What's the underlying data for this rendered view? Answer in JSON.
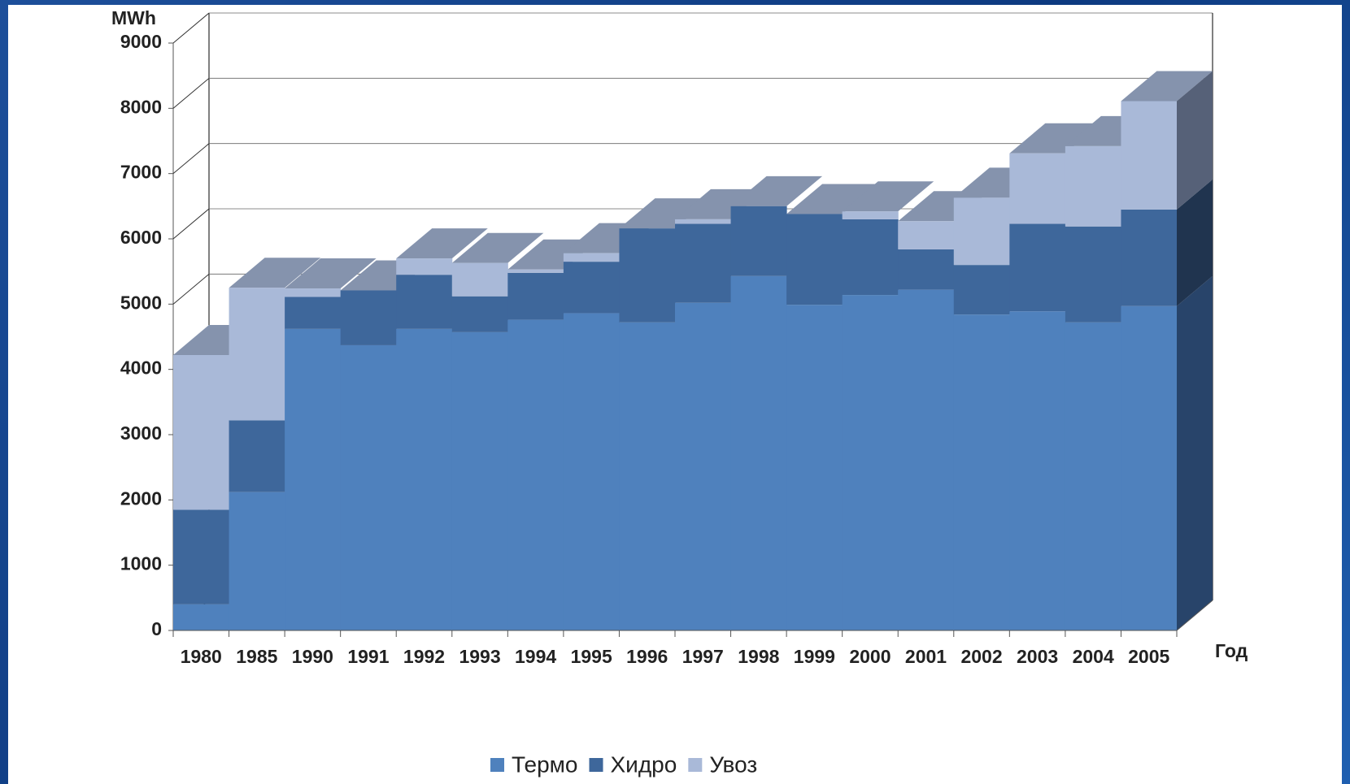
{
  "chart_data": {
    "type": "stacked_area_3d",
    "y_axis_label": "MWh",
    "x_axis_label": "Год",
    "categories": [
      "1980",
      "1985",
      "1990",
      "1991",
      "1992",
      "1993",
      "1994",
      "1995",
      "1996",
      "1997",
      "1998",
      "1999",
      "2000",
      "2001",
      "2002",
      "2003",
      "2004",
      "2005"
    ],
    "series": [
      {
        "name": "Термо",
        "color": "#4f81bd",
        "values": [
          400,
          2120,
          4620,
          4370,
          4620,
          4570,
          4760,
          4860,
          4720,
          5020,
          5430,
          4990,
          5140,
          5220,
          4840,
          4890,
          4720,
          4970
        ]
      },
      {
        "name": "Хидро",
        "color": "#3e679b",
        "values": [
          1450,
          1100,
          490,
          840,
          830,
          550,
          720,
          790,
          1440,
          1210,
          1070,
          1390,
          1160,
          620,
          760,
          1340,
          1470,
          1480
        ]
      },
      {
        "name": "Увоз",
        "color": "#a9b9d8",
        "values": [
          2370,
          2030,
          130,
          0,
          250,
          510,
          50,
          130,
          0,
          70,
          0,
          0,
          120,
          430,
          1030,
          1080,
          1230,
          1660
        ]
      }
    ],
    "ylim": [
      0,
      9000
    ],
    "yticks": [
      0,
      1000,
      2000,
      3000,
      4000,
      5000,
      6000,
      7000,
      8000,
      9000
    ],
    "grid": true,
    "legend": "bottom"
  }
}
